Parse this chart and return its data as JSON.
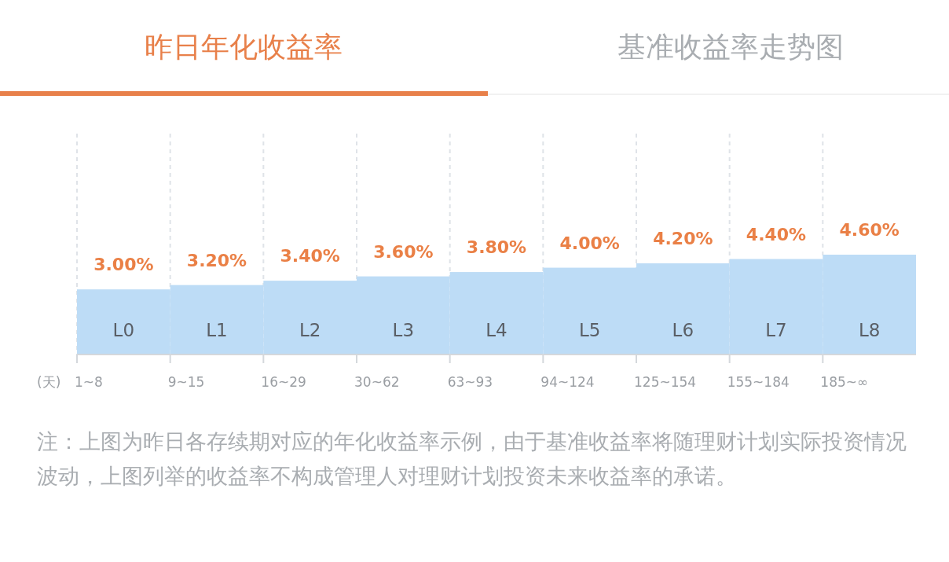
{
  "chart_data": {
    "type": "bar",
    "title": "昨日年化收益率",
    "subtitle": "基准收益率走势图",
    "xlabel": "(天)",
    "categories": [
      "L0",
      "L1",
      "L2",
      "L3",
      "L4",
      "L5",
      "L6",
      "L7",
      "L8"
    ],
    "values": [
      3.0,
      3.2,
      3.4,
      3.6,
      3.8,
      4.0,
      4.2,
      4.4,
      4.6
    ],
    "value_labels": [
      "3.00%",
      "3.20%",
      "3.40%",
      "3.60%",
      "3.80%",
      "4.00%",
      "4.20%",
      "4.40%",
      "4.60%"
    ],
    "color": "#bddcf6",
    "grid": "x",
    "annotations": [
      "1~8",
      "9~15",
      "16~29",
      "30~62",
      "63~93",
      "94~124",
      "125~154",
      "155~184",
      "185~∞",
      "注：上图为昨日各存续期对应的年化收益率示例，由于基准收益率将随理财计划实际投资情况波动，上图列举的收益率不构成管理人对理财计划投资未来收益率的承诺。"
    ]
  }
}
